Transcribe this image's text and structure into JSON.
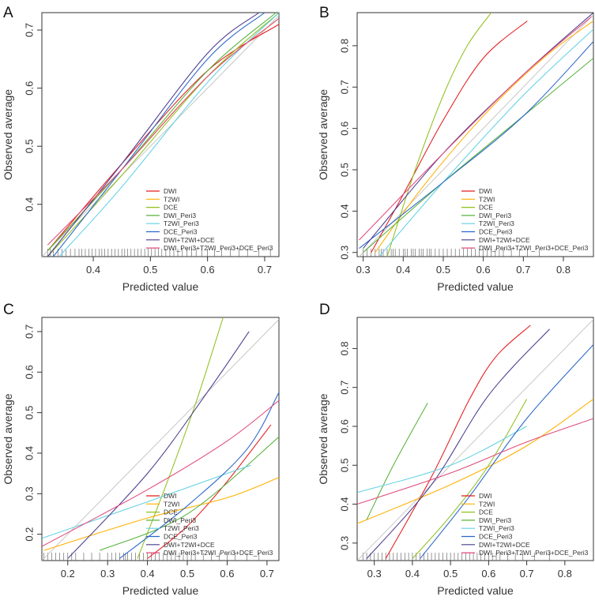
{
  "figure": {
    "x_label": "Predicted value",
    "y_label": "Observed average",
    "series_colors": {
      "DWI": "#e41a1c",
      "T2WI": "#ffb000",
      "DCE": "#8fc01f",
      "DWI_Peri3": "#58b23b",
      "T2WI_Peri3": "#61d1e3",
      "DCE_Peri3": "#2a67c9",
      "DWI+T2WI+DCE": "#4a3b8f",
      "DWI_Peri3+T2WI_Peri3+DCE_Peri3": "#e04a7a",
      "reference": "#cccccc"
    }
  },
  "chart_data": [
    {
      "panel": "A",
      "type": "line",
      "xlabel": "Predicted value",
      "ylabel": "Observed average",
      "xlim": [
        0.31,
        0.725
      ],
      "ylim": [
        0.31,
        0.73
      ],
      "xticks": [
        0.4,
        0.5,
        0.6,
        0.7
      ],
      "yticks": [
        0.4,
        0.5,
        0.6,
        0.7
      ],
      "legend": [
        "DWI",
        "T2WI",
        "DCE",
        "DWI_Peri3",
        "T2WI_Peri3",
        "DCE_Peri3",
        "DWI+T2WI+DCE",
        "DWI_Peri3+T2WI_Peri3+DCE_Peri3"
      ],
      "legend_position": "bottom-right",
      "series": [
        {
          "name": "DWI",
          "points": [
            [
              0.32,
              0.32
            ],
            [
              0.45,
              0.47
            ],
            [
              0.6,
              0.63
            ],
            [
              0.725,
              0.71
            ]
          ]
        },
        {
          "name": "T2WI",
          "points": [
            [
              0.32,
              0.32
            ],
            [
              0.45,
              0.46
            ],
            [
              0.6,
              0.62
            ],
            [
              0.725,
              0.72
            ]
          ]
        },
        {
          "name": "DCE",
          "points": [
            [
              0.32,
              0.31
            ],
            [
              0.45,
              0.45
            ],
            [
              0.6,
              0.62
            ],
            [
              0.725,
              0.73
            ]
          ]
        },
        {
          "name": "DWI_Peri3",
          "points": [
            [
              0.32,
              0.32
            ],
            [
              0.45,
              0.46
            ],
            [
              0.6,
              0.63
            ],
            [
              0.72,
              0.73
            ]
          ]
        },
        {
          "name": "T2WI_Peri3",
          "points": [
            [
              0.34,
              0.31
            ],
            [
              0.45,
              0.43
            ],
            [
              0.6,
              0.61
            ],
            [
              0.725,
              0.73
            ]
          ]
        },
        {
          "name": "DCE_Peri3",
          "points": [
            [
              0.33,
              0.31
            ],
            [
              0.45,
              0.46
            ],
            [
              0.6,
              0.65
            ],
            [
              0.7,
              0.73
            ]
          ]
        },
        {
          "name": "DWI+T2WI+DCE",
          "points": [
            [
              0.32,
              0.31
            ],
            [
              0.45,
              0.47
            ],
            [
              0.6,
              0.66
            ],
            [
              0.69,
              0.73
            ]
          ]
        },
        {
          "name": "DWI_Peri3+T2WI_Peri3+DCE_Peri3",
          "points": [
            [
              0.32,
              0.33
            ],
            [
              0.45,
              0.46
            ],
            [
              0.6,
              0.62
            ],
            [
              0.725,
              0.72
            ]
          ]
        },
        {
          "name": "reference",
          "points": [
            [
              0.31,
              0.31
            ],
            [
              0.725,
              0.725
            ]
          ]
        }
      ],
      "rug": [
        0.32,
        0.325,
        0.33,
        0.338,
        0.345,
        0.352,
        0.36,
        0.368,
        0.375,
        0.38,
        0.386,
        0.392,
        0.398,
        0.404,
        0.41,
        0.415,
        0.42,
        0.426,
        0.432,
        0.438,
        0.444,
        0.45,
        0.455,
        0.46,
        0.466,
        0.472,
        0.478,
        0.484,
        0.49,
        0.496,
        0.502,
        0.508,
        0.514,
        0.52,
        0.527,
        0.534,
        0.541,
        0.548,
        0.556,
        0.564,
        0.572,
        0.58,
        0.59,
        0.6,
        0.612,
        0.625,
        0.64,
        0.655,
        0.67,
        0.69,
        0.71
      ]
    },
    {
      "panel": "B",
      "type": "line",
      "xlabel": "Predicted value",
      "ylabel": "Observed average",
      "xlim": [
        0.285,
        0.875
      ],
      "ylim": [
        0.29,
        0.88
      ],
      "xticks": [
        0.3,
        0.4,
        0.5,
        0.6,
        0.7,
        0.8
      ],
      "yticks": [
        0.3,
        0.4,
        0.5,
        0.6,
        0.7,
        0.8
      ],
      "legend": [
        "DWI",
        "T2WI",
        "DCE",
        "DWI_Peri3",
        "T2WI_Peri3",
        "DCE_Peri3",
        "DWI+T2WI+DCE",
        "DWI_Peri3+T2WI_Peri3+DCE_Peri3"
      ],
      "legend_position": "bottom-right",
      "series": [
        {
          "name": "DWI",
          "points": [
            [
              0.32,
              0.3
            ],
            [
              0.4,
              0.44
            ],
            [
              0.5,
              0.62
            ],
            [
              0.6,
              0.77
            ],
            [
              0.71,
              0.86
            ]
          ]
        },
        {
          "name": "T2WI",
          "points": [
            [
              0.33,
              0.3
            ],
            [
              0.45,
              0.46
            ],
            [
              0.6,
              0.63
            ],
            [
              0.75,
              0.77
            ],
            [
              0.875,
              0.86
            ]
          ]
        },
        {
          "name": "DCE",
          "points": [
            [
              0.36,
              0.29
            ],
            [
              0.43,
              0.5
            ],
            [
              0.5,
              0.68
            ],
            [
              0.56,
              0.8
            ],
            [
              0.62,
              0.88
            ]
          ]
        },
        {
          "name": "DWI_Peri3",
          "points": [
            [
              0.3,
              0.3
            ],
            [
              0.5,
              0.47
            ],
            [
              0.7,
              0.63
            ],
            [
              0.875,
              0.77
            ]
          ]
        },
        {
          "name": "T2WI_Peri3",
          "points": [
            [
              0.34,
              0.29
            ],
            [
              0.5,
              0.47
            ],
            [
              0.7,
              0.68
            ],
            [
              0.875,
              0.84
            ]
          ]
        },
        {
          "name": "DCE_Peri3",
          "points": [
            [
              0.29,
              0.31
            ],
            [
              0.5,
              0.47
            ],
            [
              0.7,
              0.63
            ],
            [
              0.875,
              0.81
            ]
          ]
        },
        {
          "name": "DWI+T2WI+DCE",
          "points": [
            [
              0.3,
              0.31
            ],
            [
              0.5,
              0.54
            ],
            [
              0.7,
              0.73
            ],
            [
              0.875,
              0.88
            ]
          ]
        },
        {
          "name": "DWI_Peri3+T2WI_Peri3+DCE_Peri3",
          "points": [
            [
              0.29,
              0.33
            ],
            [
              0.5,
              0.54
            ],
            [
              0.7,
              0.73
            ],
            [
              0.87,
              0.87
            ]
          ]
        },
        {
          "name": "reference",
          "points": [
            [
              0.29,
              0.29
            ],
            [
              0.875,
              0.875
            ]
          ]
        }
      ],
      "rug": [
        0.3,
        0.31,
        0.32,
        0.33,
        0.34,
        0.345,
        0.35,
        0.36,
        0.37,
        0.375,
        0.38,
        0.39,
        0.4,
        0.405,
        0.41,
        0.42,
        0.425,
        0.43,
        0.44,
        0.445,
        0.45,
        0.46,
        0.465,
        0.47,
        0.48,
        0.49,
        0.5,
        0.51,
        0.52,
        0.53,
        0.54,
        0.55,
        0.56,
        0.57,
        0.58,
        0.59,
        0.6,
        0.61,
        0.62,
        0.63,
        0.64,
        0.65,
        0.67,
        0.69,
        0.71,
        0.74
      ]
    },
    {
      "panel": "C",
      "type": "line",
      "xlabel": "Predicted value",
      "ylabel": "Observed average",
      "xlim": [
        0.135,
        0.73
      ],
      "ylim": [
        0.135,
        0.735
      ],
      "xticks": [
        0.2,
        0.3,
        0.4,
        0.5,
        0.6,
        0.7
      ],
      "yticks": [
        0.2,
        0.3,
        0.4,
        0.5,
        0.6,
        0.7
      ],
      "legend": [
        "DWI",
        "T2WI",
        "DCE",
        "DWI_Peri3",
        "T2WI_Peri3",
        "DCE_Peri3",
        "DWI+T2WI+DCE",
        "DWI_Peri3+T2WI_Peri3+DCE_Peri3"
      ],
      "legend_position": "bottom-right",
      "series": [
        {
          "name": "DWI",
          "points": [
            [
              0.4,
              0.14
            ],
            [
              0.5,
              0.22
            ],
            [
              0.6,
              0.33
            ],
            [
              0.71,
              0.47
            ]
          ]
        },
        {
          "name": "T2WI",
          "points": [
            [
              0.14,
              0.16
            ],
            [
              0.4,
              0.24
            ],
            [
              0.6,
              0.29
            ],
            [
              0.73,
              0.34
            ]
          ]
        },
        {
          "name": "DCE",
          "points": [
            [
              0.375,
              0.14
            ],
            [
              0.45,
              0.33
            ],
            [
              0.52,
              0.52
            ],
            [
              0.59,
              0.735
            ]
          ]
        },
        {
          "name": "DWI_Peri3",
          "points": [
            [
              0.28,
              0.16
            ],
            [
              0.5,
              0.25
            ],
            [
              0.73,
              0.44
            ]
          ]
        },
        {
          "name": "T2WI_Peri3",
          "points": [
            [
              0.135,
              0.19
            ],
            [
              0.4,
              0.28
            ],
            [
              0.6,
              0.35
            ],
            [
              0.66,
              0.37
            ]
          ]
        },
        {
          "name": "DCE_Peri3",
          "points": [
            [
              0.33,
              0.14
            ],
            [
              0.5,
              0.27
            ],
            [
              0.65,
              0.41
            ],
            [
              0.73,
              0.55
            ]
          ]
        },
        {
          "name": "DWI+T2WI+DCE",
          "points": [
            [
              0.2,
              0.14
            ],
            [
              0.4,
              0.35
            ],
            [
              0.55,
              0.55
            ],
            [
              0.655,
              0.7
            ]
          ]
        },
        {
          "name": "DWI_Peri3+T2WI_Peri3+DCE_Peri3",
          "points": [
            [
              0.135,
              0.17
            ],
            [
              0.4,
              0.31
            ],
            [
              0.6,
              0.43
            ],
            [
              0.73,
              0.53
            ]
          ]
        },
        {
          "name": "reference",
          "points": [
            [
              0.135,
              0.135
            ],
            [
              0.73,
              0.73
            ]
          ]
        }
      ],
      "rug": [
        0.14,
        0.15,
        0.16,
        0.17,
        0.18,
        0.19,
        0.2,
        0.21,
        0.22,
        0.24,
        0.26,
        0.28,
        0.3,
        0.31,
        0.32,
        0.33,
        0.34,
        0.345,
        0.35,
        0.36,
        0.37,
        0.38,
        0.39,
        0.4,
        0.41,
        0.42,
        0.43,
        0.44,
        0.45,
        0.46,
        0.47,
        0.48,
        0.49,
        0.5,
        0.51,
        0.52,
        0.54,
        0.56,
        0.58,
        0.6,
        0.62,
        0.65,
        0.68
      ]
    },
    {
      "panel": "D",
      "type": "line",
      "xlabel": "Predicted value",
      "ylabel": "Observed average",
      "xlim": [
        0.255,
        0.875
      ],
      "ylim": [
        0.255,
        0.88
      ],
      "xticks": [
        0.3,
        0.4,
        0.5,
        0.6,
        0.7,
        0.8
      ],
      "yticks": [
        0.3,
        0.4,
        0.5,
        0.6,
        0.7,
        0.8
      ],
      "legend": [
        "DWI",
        "T2WI",
        "DCE",
        "DWI_Peri3",
        "T2WI_Peri3",
        "DCE_Peri3",
        "DWI+T2WI+DCE",
        "DWI_Peri3+T2WI_Peri3+DCE_Peri3"
      ],
      "legend_position": "bottom-right",
      "series": [
        {
          "name": "DWI",
          "points": [
            [
              0.33,
              0.26
            ],
            [
              0.45,
              0.47
            ],
            [
              0.55,
              0.67
            ],
            [
              0.62,
              0.78
            ],
            [
              0.71,
              0.86
            ]
          ]
        },
        {
          "name": "T2WI",
          "points": [
            [
              0.255,
              0.35
            ],
            [
              0.5,
              0.45
            ],
            [
              0.7,
              0.55
            ],
            [
              0.875,
              0.67
            ]
          ]
        },
        {
          "name": "DCE",
          "points": [
            [
              0.4,
              0.26
            ],
            [
              0.5,
              0.37
            ],
            [
              0.6,
              0.5
            ],
            [
              0.7,
              0.67
            ]
          ]
        },
        {
          "name": "DWI_Peri3",
          "points": [
            [
              0.28,
              0.36
            ],
            [
              0.35,
              0.5
            ],
            [
              0.44,
              0.66
            ]
          ]
        },
        {
          "name": "T2WI_Peri3",
          "points": [
            [
              0.255,
              0.43
            ],
            [
              0.5,
              0.5
            ],
            [
              0.7,
              0.6
            ]
          ]
        },
        {
          "name": "DCE_Peri3",
          "points": [
            [
              0.42,
              0.26
            ],
            [
              0.55,
              0.42
            ],
            [
              0.7,
              0.62
            ],
            [
              0.875,
              0.81
            ]
          ]
        },
        {
          "name": "DWI+T2WI+DCE",
          "points": [
            [
              0.28,
              0.26
            ],
            [
              0.45,
              0.45
            ],
            [
              0.6,
              0.68
            ],
            [
              0.76,
              0.85
            ]
          ]
        },
        {
          "name": "DWI_Peri3+T2WI_Peri3+DCE_Peri3",
          "points": [
            [
              0.255,
              0.4
            ],
            [
              0.5,
              0.48
            ],
            [
              0.7,
              0.56
            ],
            [
              0.875,
              0.62
            ]
          ]
        },
        {
          "name": "reference",
          "points": [
            [
              0.255,
              0.255
            ],
            [
              0.875,
              0.875
            ]
          ]
        }
      ],
      "rug": [
        0.27,
        0.28,
        0.29,
        0.3,
        0.31,
        0.32,
        0.33,
        0.34,
        0.35,
        0.36,
        0.37,
        0.38,
        0.39,
        0.4,
        0.41,
        0.42,
        0.43,
        0.44,
        0.45,
        0.46,
        0.47,
        0.48,
        0.49,
        0.5,
        0.51,
        0.52,
        0.53,
        0.54,
        0.55,
        0.56,
        0.57,
        0.58,
        0.59,
        0.6,
        0.61,
        0.62,
        0.63,
        0.65,
        0.67,
        0.69,
        0.72,
        0.76
      ]
    }
  ]
}
